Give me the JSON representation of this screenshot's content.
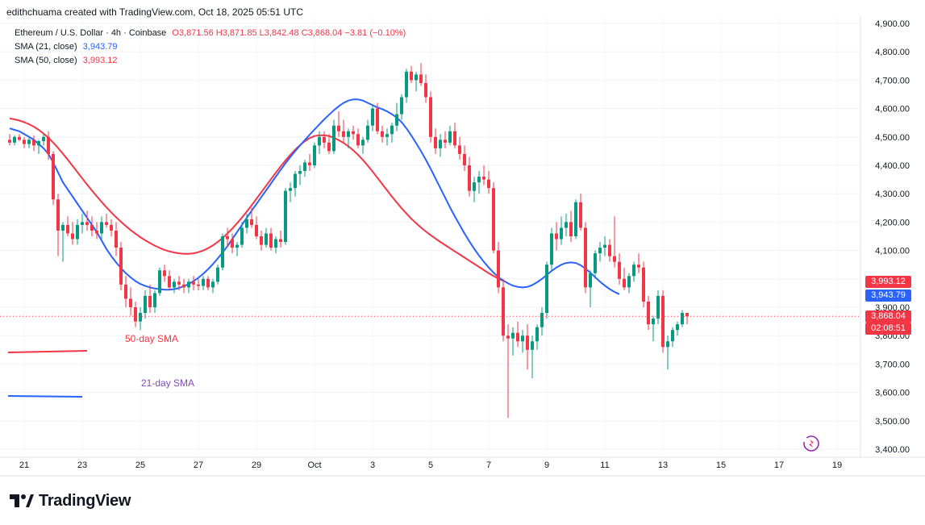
{
  "header": {
    "attribution": "edithchuama created with TradingView.com, Oct 18, 2025 05:51 UTC"
  },
  "legend": {
    "symbol": "Ethereum / U.S. Dollar · 4h · Coinbase",
    "ohlc": "O3,871.56  H3,871.85  L3,842.48  C3,868.04  −3.81 (−0.10%)",
    "sma21_label": "SMA (21, close)",
    "sma21_value": "3,943.79",
    "sma50_label": "SMA (50, close)",
    "sma50_value": "3,993.12"
  },
  "annotations": {
    "sma50_text": "50-day SMA",
    "sma21_text": "21-day SMA"
  },
  "price_tags": {
    "sma50": "3,993.12",
    "sma21": "3,943.79",
    "last_price": "3,868.04",
    "countdown": "02:08:51"
  },
  "brand": {
    "logo_text": "TradingView"
  },
  "colors": {
    "up": "#089981",
    "down": "#f23645",
    "sma21": "#2962ff",
    "sma50": "#f23645",
    "grid": "#f0f3fa",
    "text": "#131722",
    "annotation_21": "#7b4bb8"
  },
  "chart_data": {
    "type": "candlestick",
    "timeframe": "4h",
    "ylim": [
      3350,
      4950
    ],
    "y_ticks": [
      3400,
      3500,
      3600,
      3700,
      3800,
      3900,
      4000,
      4100,
      4200,
      4300,
      4400,
      4500,
      4600,
      4700,
      4800,
      4900
    ],
    "y_tick_labels": [
      "3,400.00",
      "3,500.00",
      "3,600.00",
      "3,700.00",
      "3,800.00",
      "3,900.00",
      "4,000.00",
      "4,100.00",
      "4,200.00",
      "4,300.00",
      "4,400.00",
      "4,500.00",
      "4,600.00",
      "4,700.00",
      "4,800.00",
      "4,900.00"
    ],
    "x_tick_labels": [
      "21",
      "23",
      "25",
      "27",
      "29",
      "Oct",
      "3",
      "5",
      "7",
      "9",
      "11",
      "13",
      "15",
      "17",
      "19"
    ],
    "x_tick_index": [
      3,
      15,
      27,
      39,
      51,
      63,
      75,
      87,
      99,
      111,
      123,
      135,
      147,
      159,
      171
    ],
    "candles": [
      [
        4490,
        4510,
        4470,
        4480
      ],
      [
        4480,
        4505,
        4470,
        4500
      ],
      [
        4500,
        4510,
        4485,
        4490
      ],
      [
        4490,
        4500,
        4460,
        4475
      ],
      [
        4475,
        4500,
        4460,
        4490
      ],
      [
        4490,
        4505,
        4450,
        4470
      ],
      [
        4470,
        4490,
        4440,
        4485
      ],
      [
        4485,
        4510,
        4470,
        4500
      ],
      [
        4500,
        4520,
        4420,
        4440
      ],
      [
        4440,
        4450,
        4260,
        4280
      ],
      [
        4280,
        4300,
        4080,
        4170
      ],
      [
        4170,
        4200,
        4060,
        4190
      ],
      [
        4190,
        4220,
        4150,
        4160
      ],
      [
        4160,
        4200,
        4120,
        4140
      ],
      [
        4140,
        4210,
        4120,
        4190
      ],
      [
        4190,
        4230,
        4160,
        4200
      ],
      [
        4200,
        4240,
        4170,
        4190
      ],
      [
        4190,
        4220,
        4150,
        4170
      ],
      [
        4170,
        4200,
        4140,
        4160
      ],
      [
        4160,
        4220,
        4140,
        4200
      ],
      [
        4200,
        4230,
        4180,
        4190
      ],
      [
        4190,
        4210,
        4150,
        4170
      ],
      [
        4170,
        4200,
        4080,
        4110
      ],
      [
        4110,
        4130,
        3960,
        3980
      ],
      [
        3980,
        4010,
        3900,
        3930
      ],
      [
        3930,
        3970,
        3870,
        3900
      ],
      [
        3900,
        3920,
        3830,
        3850
      ],
      [
        3850,
        3900,
        3820,
        3880
      ],
      [
        3880,
        3960,
        3860,
        3940
      ],
      [
        3940,
        3980,
        3880,
        3900
      ],
      [
        3900,
        3960,
        3880,
        3950
      ],
      [
        3950,
        4040,
        3940,
        4030
      ],
      [
        4030,
        4050,
        3990,
        4010
      ],
      [
        4010,
        4030,
        3960,
        3970
      ],
      [
        3970,
        4000,
        3950,
        3990
      ],
      [
        3990,
        4010,
        3960,
        3980
      ],
      [
        3980,
        4000,
        3950,
        3970
      ],
      [
        3970,
        4000,
        3950,
        3990
      ],
      [
        3990,
        4010,
        3960,
        3980
      ],
      [
        3980,
        4000,
        3960,
        3975
      ],
      [
        3975,
        4010,
        3960,
        4000
      ],
      [
        4000,
        4010,
        3960,
        3970
      ],
      [
        3970,
        4000,
        3950,
        3990
      ],
      [
        3990,
        4050,
        3980,
        4040
      ],
      [
        4040,
        4160,
        4030,
        4150
      ],
      [
        4150,
        4180,
        4110,
        4140
      ],
      [
        4140,
        4160,
        4090,
        4110
      ],
      [
        4110,
        4130,
        4080,
        4120
      ],
      [
        4120,
        4200,
        4110,
        4180
      ],
      [
        4180,
        4230,
        4160,
        4210
      ],
      [
        4210,
        4250,
        4180,
        4190
      ],
      [
        4190,
        4220,
        4140,
        4150
      ],
      [
        4150,
        4170,
        4100,
        4120
      ],
      [
        4120,
        4180,
        4110,
        4160
      ],
      [
        4160,
        4180,
        4100,
        4110
      ],
      [
        4110,
        4150,
        4090,
        4140
      ],
      [
        4140,
        4170,
        4110,
        4130
      ],
      [
        4130,
        4320,
        4120,
        4310
      ],
      [
        4310,
        4340,
        4270,
        4320
      ],
      [
        4320,
        4380,
        4290,
        4370
      ],
      [
        4370,
        4400,
        4330,
        4380
      ],
      [
        4380,
        4420,
        4360,
        4410
      ],
      [
        4410,
        4440,
        4380,
        4400
      ],
      [
        4400,
        4480,
        4390,
        4470
      ],
      [
        4470,
        4520,
        4440,
        4500
      ],
      [
        4500,
        4520,
        4460,
        4480
      ],
      [
        4480,
        4510,
        4440,
        4450
      ],
      [
        4450,
        4560,
        4440,
        4540
      ],
      [
        4540,
        4590,
        4500,
        4520
      ],
      [
        4520,
        4560,
        4480,
        4500
      ],
      [
        4500,
        4530,
        4460,
        4520
      ],
      [
        4520,
        4540,
        4490,
        4510
      ],
      [
        4510,
        4530,
        4460,
        4470
      ],
      [
        4470,
        4500,
        4440,
        4490
      ],
      [
        4490,
        4560,
        4480,
        4540
      ],
      [
        4540,
        4610,
        4520,
        4600
      ],
      [
        4600,
        4620,
        4510,
        4520
      ],
      [
        4520,
        4540,
        4480,
        4500
      ],
      [
        4500,
        4530,
        4470,
        4510
      ],
      [
        4510,
        4550,
        4480,
        4540
      ],
      [
        4540,
        4620,
        4520,
        4580
      ],
      [
        4580,
        4650,
        4560,
        4640
      ],
      [
        4640,
        4740,
        4620,
        4730
      ],
      [
        4730,
        4750,
        4690,
        4700
      ],
      [
        4700,
        4730,
        4660,
        4720
      ],
      [
        4720,
        4760,
        4680,
        4690
      ],
      [
        4690,
        4720,
        4620,
        4640
      ],
      [
        4640,
        4660,
        4480,
        4500
      ],
      [
        4500,
        4530,
        4440,
        4460
      ],
      [
        4460,
        4510,
        4430,
        4490
      ],
      [
        4490,
        4520,
        4460,
        4480
      ],
      [
        4480,
        4540,
        4470,
        4520
      ],
      [
        4520,
        4550,
        4460,
        4470
      ],
      [
        4470,
        4500,
        4420,
        4440
      ],
      [
        4440,
        4470,
        4380,
        4400
      ],
      [
        4400,
        4430,
        4290,
        4310
      ],
      [
        4310,
        4360,
        4270,
        4340
      ],
      [
        4340,
        4380,
        4300,
        4360
      ],
      [
        4360,
        4400,
        4330,
        4350
      ],
      [
        4350,
        4380,
        4300,
        4320
      ],
      [
        4320,
        4340,
        4090,
        4100
      ],
      [
        4100,
        4130,
        3950,
        3970
      ],
      [
        3970,
        4000,
        3780,
        3800
      ],
      [
        3800,
        3840,
        3510,
        3790
      ],
      [
        3790,
        3830,
        3730,
        3810
      ],
      [
        3810,
        3850,
        3760,
        3780
      ],
      [
        3780,
        3820,
        3740,
        3800
      ],
      [
        3800,
        3840,
        3680,
        3750
      ],
      [
        3750,
        3800,
        3650,
        3780
      ],
      [
        3780,
        3840,
        3750,
        3830
      ],
      [
        3830,
        3900,
        3800,
        3880
      ],
      [
        3880,
        4060,
        3860,
        4050
      ],
      [
        4050,
        4180,
        4030,
        4160
      ],
      [
        4160,
        4200,
        4100,
        4140
      ],
      [
        4140,
        4220,
        4120,
        4180
      ],
      [
        4180,
        4230,
        4150,
        4200
      ],
      [
        4200,
        4240,
        4130,
        4150
      ],
      [
        4150,
        4280,
        4140,
        4270
      ],
      [
        4270,
        4300,
        4170,
        4180
      ],
      [
        4180,
        4200,
        3950,
        3970
      ],
      [
        3970,
        4030,
        3900,
        4020
      ],
      [
        4020,
        4100,
        4000,
        4090
      ],
      [
        4090,
        4130,
        4060,
        4110
      ],
      [
        4110,
        4150,
        4080,
        4120
      ],
      [
        4120,
        4140,
        4060,
        4080
      ],
      [
        4080,
        4220,
        4040,
        4060
      ],
      [
        4060,
        4090,
        3980,
        4000
      ],
      [
        4000,
        4040,
        3960,
        3970
      ],
      [
        3970,
        4020,
        3950,
        4010
      ],
      [
        4010,
        4060,
        3990,
        4050
      ],
      [
        4050,
        4090,
        4020,
        4040
      ],
      [
        4040,
        4060,
        3900,
        3920
      ],
      [
        3920,
        3940,
        3820,
        3840
      ],
      [
        3840,
        3870,
        3780,
        3860
      ],
      [
        3860,
        3960,
        3840,
        3940
      ],
      [
        3940,
        3960,
        3740,
        3760
      ],
      [
        3760,
        3800,
        3680,
        3780
      ],
      [
        3780,
        3830,
        3760,
        3820
      ],
      [
        3820,
        3850,
        3800,
        3840
      ],
      [
        3840,
        3890,
        3830,
        3880
      ],
      [
        3880,
        3880,
        3840,
        3868
      ]
    ],
    "series": [
      {
        "name": "SMA (21, close)",
        "values": [
          4530,
          4525,
          4520,
          4510,
          4500,
          4490,
          4475,
          4460,
          4440,
          4410,
          4375,
          4340,
          4315,
          4290,
          4265,
          4240,
          4215,
          4190,
          4165,
          4135,
          4105,
          4080,
          4058,
          4038,
          4020,
          4005,
          3992,
          3982,
          3975,
          3970,
          3966,
          3964,
          3962,
          3962,
          3964,
          3968,
          3974,
          3982,
          3992,
          4004,
          4018,
          4034,
          4052,
          4072,
          4093,
          4115,
          4140,
          4165,
          4190,
          4215,
          4240,
          4264,
          4288,
          4312,
          4336,
          4360,
          4384,
          4407,
          4429,
          4450,
          4470,
          4489,
          4508,
          4526,
          4544,
          4562,
          4578,
          4594,
          4608,
          4620,
          4628,
          4632,
          4632,
          4628,
          4620,
          4612,
          4604,
          4598,
          4590,
          4580,
          4568,
          4552,
          4530,
          4505,
          4478,
          4450,
          4420,
          4388,
          4354,
          4320,
          4286,
          4252,
          4220,
          4190,
          4160,
          4132,
          4106,
          4082,
          4060,
          4040,
          4022,
          4006,
          3994,
          3984,
          3976,
          3972,
          3970,
          3972,
          3978,
          3988,
          4000,
          4014,
          4028,
          4040,
          4050,
          4056,
          4058,
          4056,
          4048,
          4036,
          4022,
          4006,
          3990,
          3976,
          3964,
          3954,
          3946
        ],
        "start_index": 0
      },
      {
        "name": "SMA (50, close)",
        "values": [
          4565,
          4562,
          4558,
          4552,
          4545,
          4536,
          4525,
          4512,
          4497,
          4480,
          4461,
          4441,
          4420,
          4398,
          4376,
          4354,
          4332,
          4311,
          4291,
          4271,
          4252,
          4234,
          4217,
          4201,
          4186,
          4172,
          4159,
          4147,
          4136,
          4126,
          4117,
          4109,
          4102,
          4097,
          4093,
          4090,
          4088,
          4088,
          4090,
          4094,
          4100,
          4108,
          4118,
          4130,
          4144,
          4160,
          4177,
          4196,
          4216,
          4237,
          4259,
          4282,
          4305,
          4328,
          4351,
          4374,
          4396,
          4417,
          4437,
          4455,
          4471,
          4485,
          4496,
          4503,
          4506,
          4506,
          4503,
          4497,
          4489,
          4479,
          4467,
          4453,
          4437,
          4419,
          4399,
          4378,
          4356,
          4334,
          4312,
          4290,
          4269,
          4249,
          4230,
          4212,
          4196,
          4181,
          4167,
          4154,
          4142,
          4130,
          4119,
          4108,
          4097,
          4086,
          4075,
          4064,
          4053,
          4042,
          4031,
          4020,
          4010,
          4001,
          3993
        ],
        "start_index": 0
      }
    ],
    "last_price": 3868.04
  }
}
